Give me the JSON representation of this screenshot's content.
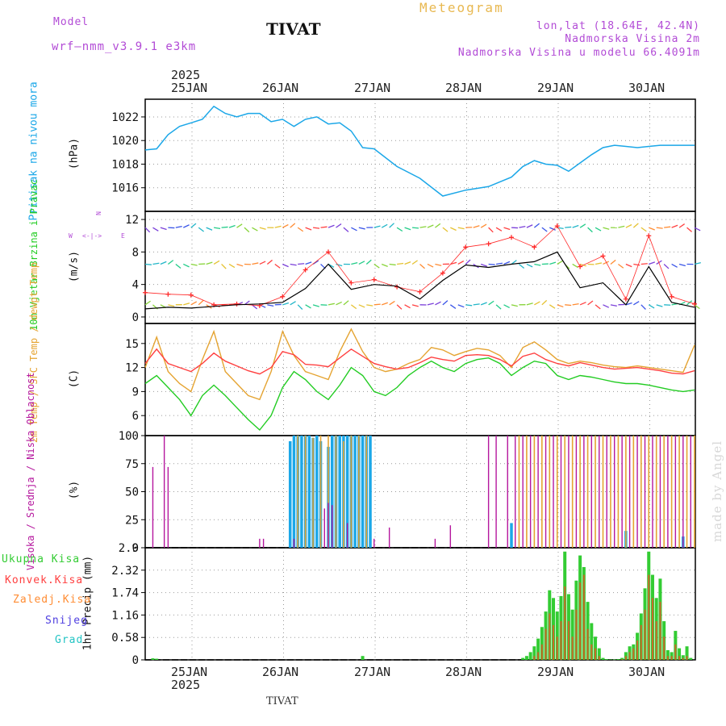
{
  "header": {
    "model_label": "Model",
    "model_name": "wrf—nmm_v3.9.1  e3km",
    "station": "TIVAT",
    "meteogram": "Meteogram",
    "lonlat": "lon,lat (18.64E, 42.4N)",
    "altitude": "Nadmorska Visina 2m",
    "model_altitude": "Nadmorska Visina u modelu 66.4091m"
  },
  "time_axis": {
    "year": "2025",
    "days": [
      "25JAN",
      "26JAN",
      "27JAN",
      "28JAN",
      "29JAN",
      "30JAN"
    ]
  },
  "footer": {
    "station": "TIVAT",
    "credit": "made by Angel"
  },
  "colors": {
    "pressure": "#1ba7e8",
    "wind_barb_low": "#7a3fd9",
    "gust": "#ff2a2a",
    "temp2m": "#ff4040",
    "sfc_temp": "#e5a432",
    "dewpt": "#22cc22",
    "cloud_high": "#1ba7e8",
    "cloud_mid": "#e5a432",
    "cloud_low": "#b5179e",
    "precip_total": "#33cc33",
    "precip_conv": "#ff4040",
    "precip_frozen": "#ff8c33",
    "snow": "#4f3fe0",
    "hail": "#22c4c4"
  },
  "chart_data": [
    {
      "type": "line",
      "title": "Pritisak na nivou mora",
      "ylabel": "(hPa)",
      "yticks": [
        1016,
        1018,
        1020,
        1022
      ],
      "ylim": [
        1014,
        1023.5
      ],
      "x_hours": [
        0,
        3,
        6,
        9,
        12,
        15,
        18,
        21,
        24,
        27,
        30,
        33,
        36,
        39,
        42,
        45,
        48,
        51,
        54,
        57,
        60,
        66,
        72,
        78,
        84,
        90,
        96,
        99,
        102,
        105,
        108,
        111,
        114,
        117,
        120,
        123,
        126,
        129,
        132,
        135,
        138,
        141,
        144
      ],
      "values": [
        1019.2,
        1019.3,
        1020.5,
        1021.2,
        1021.5,
        1021.8,
        1022.9,
        1022.3,
        1022.0,
        1022.3,
        1022.3,
        1021.6,
        1021.8,
        1021.2,
        1021.8,
        1022.0,
        1021.4,
        1021.5,
        1020.8,
        1019.4,
        1019.3,
        1017.8,
        1016.8,
        1015.3,
        1015.8,
        1016.1,
        1016.9,
        1017.8,
        1018.3,
        1018.0,
        1017.9,
        1017.4,
        1018.1,
        1018.8,
        1019.4,
        1019.6,
        1019.5,
        1019.4,
        1019.5,
        1019.6,
        1019.6,
        1019.6,
        1019.6
      ]
    },
    {
      "type": "line",
      "title": "10m Vjetar Brzina i Pravac",
      "ylabel": "(m/s)",
      "yticks": [
        0,
        4,
        8,
        12
      ],
      "ylim": [
        -0.8,
        13
      ],
      "direction_legend": [
        "W",
        "E",
        "N",
        "S"
      ],
      "x_hours": [
        0,
        6,
        12,
        18,
        24,
        30,
        36,
        42,
        48,
        54,
        60,
        66,
        72,
        78,
        84,
        90,
        96,
        102,
        108,
        114,
        120,
        126,
        132,
        138,
        144
      ],
      "wind_speed": [
        1.0,
        1.2,
        1.1,
        1.3,
        1.5,
        1.6,
        1.8,
        3.5,
        6.5,
        3.4,
        4.0,
        3.8,
        2.2,
        4.5,
        6.4,
        6.1,
        6.5,
        6.8,
        8.0,
        3.6,
        4.2,
        1.5,
        6.2,
        1.8,
        1.2
      ],
      "gusts": [
        3.0,
        2.8,
        2.7,
        1.5,
        1.6,
        1.4,
        2.5,
        5.8,
        8.0,
        4.2,
        4.6,
        3.7,
        3.1,
        5.4,
        8.6,
        9.0,
        9.8,
        8.6,
        11.2,
        6.2,
        7.5,
        2.2,
        10.0,
        2.5,
        1.6
      ]
    },
    {
      "type": "line",
      "title": "2m Temp / SFC Temp / dewpt Temp",
      "ylabel": "(C)",
      "yticks": [
        6,
        9,
        12,
        15
      ],
      "ylim": [
        3.5,
        17.5
      ],
      "x_hours": [
        0,
        3,
        6,
        9,
        12,
        15,
        18,
        21,
        24,
        27,
        30,
        33,
        36,
        39,
        42,
        45,
        48,
        51,
        54,
        57,
        60,
        63,
        66,
        69,
        72,
        75,
        78,
        81,
        84,
        87,
        90,
        93,
        96,
        99,
        102,
        105,
        108,
        111,
        114,
        117,
        120,
        123,
        126,
        129,
        132,
        135,
        138,
        141,
        144
      ],
      "series": [
        {
          "name": "2m Temp",
          "values": [
            12.5,
            14.3,
            12.5,
            12.0,
            11.5,
            12.5,
            13.8,
            12.8,
            12.2,
            11.6,
            11.2,
            12.0,
            14.0,
            13.6,
            12.4,
            12.3,
            12.1,
            13.2,
            14.3,
            13.4,
            12.5,
            12.1,
            11.8,
            12.0,
            12.6,
            13.3,
            13.0,
            12.8,
            13.5,
            13.6,
            13.5,
            13.0,
            12.2,
            13.4,
            13.8,
            13.0,
            12.5,
            12.2,
            12.6,
            12.3,
            12.0,
            11.8,
            11.9,
            12.0,
            11.8,
            11.6,
            11.3,
            11.2,
            11.6
          ]
        },
        {
          "name": "SFC Temp",
          "values": [
            12.0,
            15.8,
            11.5,
            10.0,
            9.0,
            13.0,
            16.5,
            11.5,
            10.0,
            8.5,
            8.0,
            11.5,
            16.5,
            13.5,
            11.5,
            11.0,
            10.5,
            14.0,
            16.8,
            14.0,
            12.0,
            11.5,
            11.8,
            12.5,
            13.0,
            14.5,
            14.2,
            13.5,
            14.0,
            14.4,
            14.2,
            13.5,
            12.0,
            14.5,
            15.2,
            14.2,
            13.0,
            12.5,
            12.8,
            12.6,
            12.3,
            12.1,
            12.0,
            12.2,
            12.0,
            11.8,
            11.6,
            11.4,
            14.8
          ]
        },
        {
          "name": "dewpt Temp",
          "values": [
            10.0,
            11.0,
            9.5,
            8.0,
            6.0,
            8.5,
            9.8,
            8.5,
            7.0,
            5.5,
            4.2,
            6.0,
            9.5,
            11.5,
            10.5,
            9.0,
            8.0,
            9.8,
            12.0,
            11.0,
            9.0,
            8.5,
            9.5,
            11.0,
            12.0,
            12.8,
            12.0,
            11.5,
            12.5,
            13.0,
            13.2,
            12.5,
            11.0,
            12.0,
            12.8,
            12.5,
            11.0,
            10.5,
            11.0,
            10.8,
            10.5,
            10.2,
            10.0,
            10.0,
            9.8,
            9.5,
            9.2,
            9.0,
            9.2
          ]
        }
      ]
    },
    {
      "type": "bar",
      "title": "Visoka / Srednja / Niska Oblacnost",
      "ylabel": "(%)",
      "yticks": [
        0,
        25,
        50,
        75,
        100
      ],
      "ylim": [
        0,
        100
      ],
      "series": [
        {
          "name": "Visoka Oblacnost",
          "x_hours": [
            38,
            39,
            40,
            41,
            42,
            43,
            44,
            45,
            46,
            48,
            49,
            50,
            51,
            52,
            53,
            54,
            55,
            56,
            57,
            58,
            59,
            96,
            126,
            141
          ],
          "values": [
            95,
            100,
            100,
            100,
            100,
            100,
            98,
            100,
            95,
            90,
            100,
            100,
            100,
            100,
            100,
            100,
            100,
            100,
            100,
            100,
            100,
            22,
            15,
            10
          ]
        },
        {
          "name": "Srednja Oblacnost",
          "x_hours": [
            40,
            42,
            44,
            46,
            48,
            50,
            52,
            54,
            56,
            58,
            98,
            100,
            102,
            104,
            106,
            108,
            110,
            112,
            114,
            116,
            118,
            120,
            122,
            124,
            126,
            128,
            130,
            132,
            134,
            136,
            138,
            140,
            142,
            144
          ],
          "values": [
            100,
            100,
            98,
            100,
            100,
            100,
            95,
            100,
            100,
            100,
            100,
            100,
            100,
            100,
            100,
            100,
            100,
            100,
            100,
            100,
            100,
            100,
            100,
            100,
            100,
            100,
            100,
            100,
            100,
            100,
            100,
            100,
            100,
            100
          ]
        },
        {
          "name": "Niska Oblacnost",
          "x_hours": [
            2,
            5,
            6,
            30,
            31,
            39,
            47,
            48,
            49,
            53,
            60,
            64,
            76,
            80,
            90,
            92,
            95,
            97,
            99,
            101,
            103,
            105,
            107,
            109,
            111,
            113,
            115,
            117,
            119,
            121,
            123,
            125,
            127,
            129,
            131,
            133,
            135,
            137,
            139,
            141,
            143
          ],
          "values": [
            72,
            100,
            72,
            8,
            8,
            8,
            35,
            40,
            38,
            22,
            8,
            18,
            8,
            20,
            100,
            100,
            100,
            100,
            100,
            100,
            100,
            100,
            100,
            100,
            100,
            100,
            100,
            100,
            100,
            100,
            100,
            100,
            100,
            100,
            100,
            100,
            100,
            100,
            100,
            100,
            100
          ]
        }
      ]
    },
    {
      "type": "bar",
      "title": "1hr Precip",
      "ylabel": "1hr Precip (mm)",
      "yticks": [
        0,
        0.58,
        1.16,
        1.74,
        2.32,
        2.9
      ],
      "ytick_labels": [
        "0",
        "0.58",
        "1.16",
        "1.74",
        "2.32",
        "2.9"
      ],
      "ylim": [
        0,
        2.9
      ],
      "legend": [
        "Ukupna Kisa",
        "Konvek.Kisa",
        "Zaledj.Kisa",
        "Snijeg",
        "Grad"
      ],
      "x_hours": [
        2,
        3,
        57,
        99,
        100,
        101,
        102,
        103,
        104,
        105,
        106,
        107,
        108,
        109,
        110,
        111,
        112,
        113,
        114,
        115,
        116,
        117,
        118,
        119,
        120,
        121,
        122,
        123,
        124,
        125,
        126,
        127,
        128,
        129,
        130,
        131,
        132,
        133,
        134,
        135,
        136,
        137,
        138,
        139,
        140,
        141,
        142,
        143
      ],
      "total": [
        0.04,
        0.03,
        0.1,
        0.05,
        0.1,
        0.2,
        0.35,
        0.55,
        0.85,
        1.25,
        1.8,
        1.6,
        1.25,
        1.65,
        2.8,
        1.7,
        1.3,
        2.05,
        2.7,
        2.4,
        1.5,
        0.95,
        0.6,
        0.3,
        0.05,
        0.02,
        0.01,
        0.01,
        0.02,
        0.05,
        0.2,
        0.35,
        0.4,
        0.7,
        1.2,
        1.85,
        2.8,
        2.2,
        1.6,
        2.1,
        1.0,
        0.25,
        0.2,
        0.75,
        0.3,
        0.12,
        0.35,
        0.05
      ],
      "convective": [
        0,
        0,
        0,
        0,
        0,
        0,
        0.1,
        0.2,
        0.4,
        0.8,
        1.2,
        0.9,
        0.6,
        1.0,
        1.9,
        1.0,
        0.6,
        1.3,
        2.0,
        2.2,
        0.8,
        0.4,
        0.3,
        0.1,
        0,
        0,
        0,
        0,
        0,
        0.02,
        0.1,
        0.2,
        0.3,
        0.5,
        0.9,
        1.3,
        2.2,
        1.6,
        1.0,
        1.5,
        0.6,
        0.1,
        0.1,
        0.4,
        0.1,
        0.05,
        0.1,
        0
      ]
    }
  ]
}
